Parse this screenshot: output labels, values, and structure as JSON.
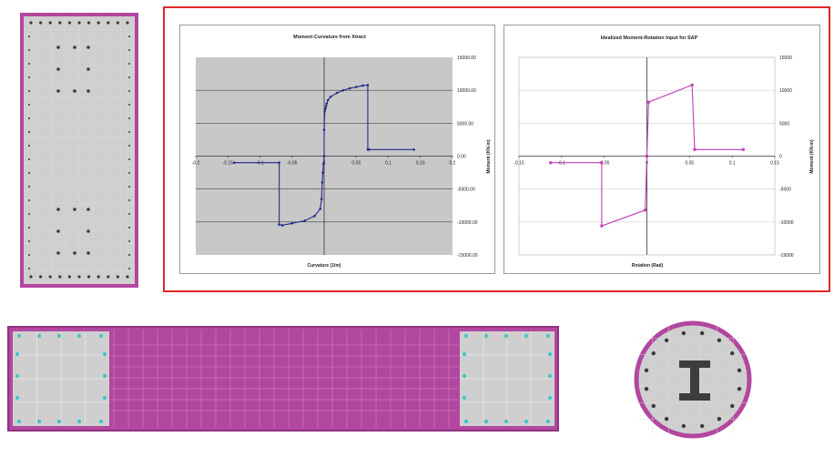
{
  "colors": {
    "page_bg": "#ffffff",
    "section_border": "#b2479f",
    "section_fill": "#cfcfcf",
    "magenta_fill": "#b2479f",
    "rebar_dark": "#3a3a3a",
    "rebar_cyan": "#3ec6c6",
    "frame_red": "#e0262a",
    "plot_area_gray": "#c8c8c8",
    "series_blue": "#232a8c",
    "series_magenta": "#c23cb8",
    "steel_shape": "#3d3d3d"
  },
  "chart_data": [
    {
      "type": "line",
      "title": "Moment-Curvature from Xtract",
      "xlabel": "Curvature (1/m)",
      "ylabel": "Moment (KN-m)",
      "xlim": [
        -0.2,
        0.2
      ],
      "ylim": [
        -15000,
        15000
      ],
      "x_ticks": [
        "-0.2",
        "-0.15",
        "-0.1",
        "-0.05",
        "0",
        "0.05",
        "0.1",
        "0.15",
        "0.2"
      ],
      "x_tick_values": [
        -0.2,
        -0.15,
        -0.1,
        -0.05,
        0,
        0.05,
        0.1,
        0.15,
        0.2
      ],
      "y_ticks": [
        "15000.00",
        "10000.00",
        "5000.00",
        "0.00",
        "-5000.00",
        "-10000.00",
        "-15000.00"
      ],
      "y_tick_values": [
        15000,
        10000,
        5000,
        0,
        -5000,
        -10000,
        -15000
      ],
      "grid": true,
      "plot_background": "gray",
      "series": [
        {
          "x": [
            -0.14,
            -0.07,
            -0.07,
            -0.065,
            -0.05,
            -0.03,
            -0.015,
            -0.006,
            -0.004,
            -0.003,
            -0.002,
            -0.001,
            0,
            0,
            0.001,
            0.002,
            0.003,
            0.004,
            0.006,
            0.01,
            0.02,
            0.03,
            0.04,
            0.05,
            0.06,
            0.068,
            0.068,
            0.07,
            0.14
          ],
          "y": [
            -1000,
            -1000,
            -10400,
            -10500,
            -10200,
            -9800,
            -9100,
            -8000,
            -6500,
            -4000,
            -2500,
            -1200,
            0,
            4000,
            6800,
            7200,
            7600,
            8000,
            8500,
            9000,
            9600,
            10000,
            10300,
            10500,
            10700,
            10800,
            1000,
            1000,
            1000
          ]
        }
      ]
    },
    {
      "type": "line",
      "title": "Idealized Moment-Rotation Input for SAP",
      "xlabel": "Rotation (Rad)",
      "ylabel": "Moment (KN-m)",
      "xlim": [
        -0.15,
        0.15
      ],
      "ylim": [
        -15000,
        15000
      ],
      "x_ticks": [
        "-0.15",
        "-0.1",
        "-0.05",
        "0",
        "0.05",
        "0.1",
        "0.15"
      ],
      "x_tick_values": [
        -0.15,
        -0.1,
        -0.05,
        0,
        0.05,
        0.1,
        0.15
      ],
      "y_ticks": [
        "15000",
        "10000",
        "5000",
        "0",
        "-5000",
        "-10000",
        "-15000"
      ],
      "y_tick_values": [
        15000,
        10000,
        5000,
        0,
        -5000,
        -10000,
        -15000
      ],
      "grid": true,
      "plot_background": "white",
      "series": [
        {
          "x": [
            -0.113,
            -0.053,
            -0.053,
            -0.002,
            0,
            0.002,
            0.053,
            0.056,
            0.113
          ],
          "y": [
            -1000,
            -1000,
            -10600,
            -8200,
            0,
            8200,
            10800,
            1000,
            1000
          ]
        }
      ]
    }
  ]
}
